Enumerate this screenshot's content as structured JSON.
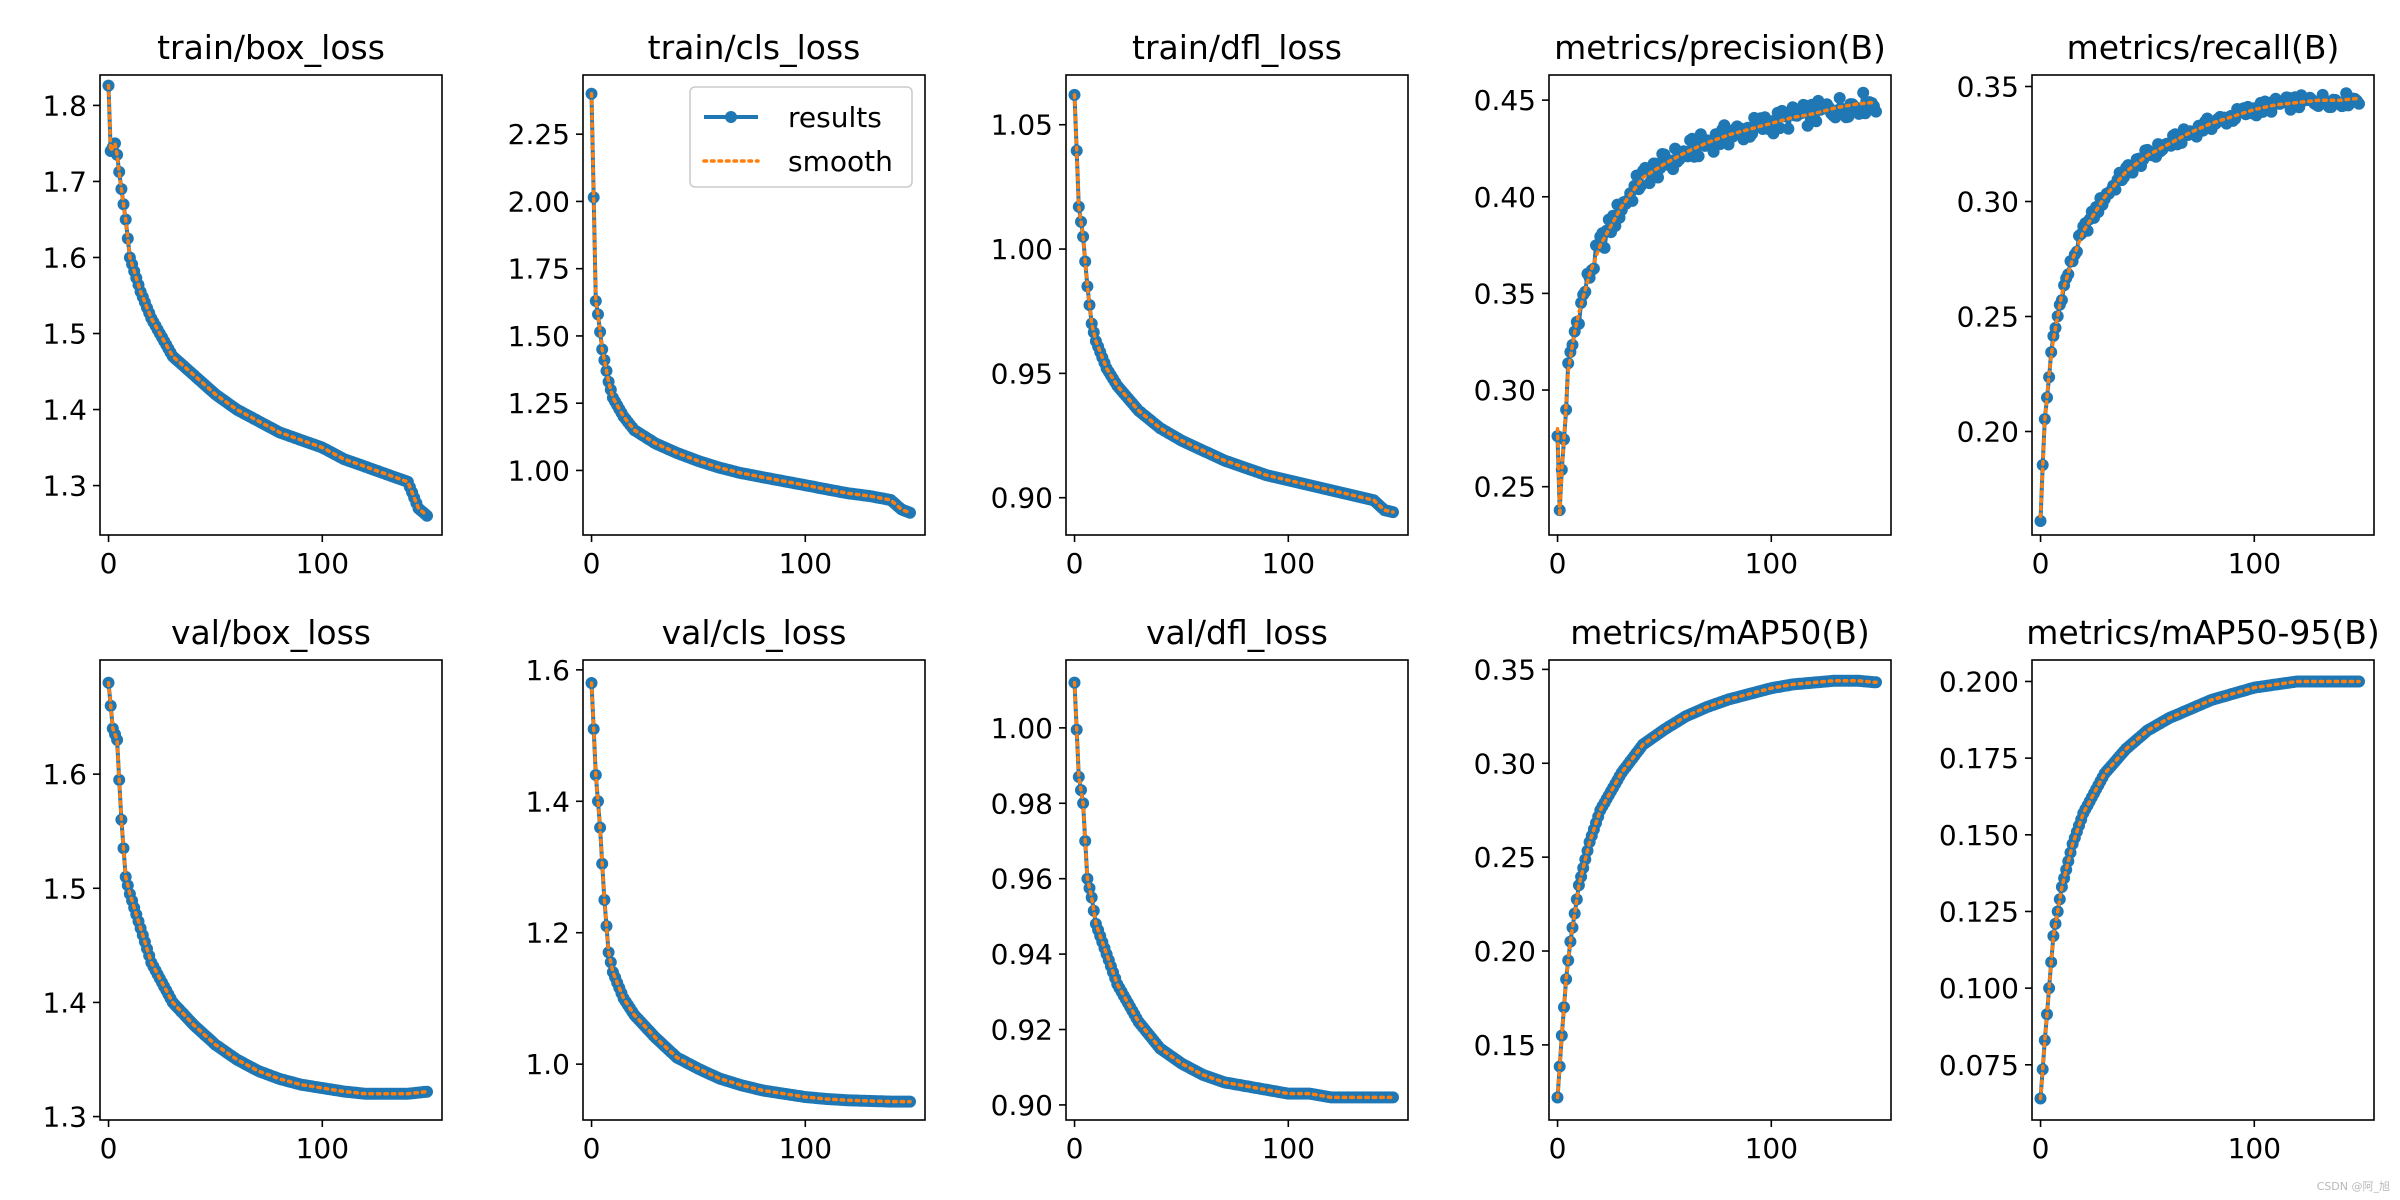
{
  "watermark": "CSDN @阿_旭",
  "colors": {
    "results": "#1f77b4",
    "smooth": "#ff7f0e",
    "axes": "#000000",
    "background": "#ffffff"
  },
  "legend": {
    "location": "upper right",
    "panel": 1,
    "entries": [
      "results",
      "smooth"
    ]
  },
  "chart_data": [
    {
      "type": "line",
      "title": "train/box_loss",
      "xlim": [
        -4,
        156
      ],
      "ylim": [
        1.235,
        1.84
      ],
      "xticks": [
        0,
        100
      ],
      "xtick_labels": [
        "0",
        "100"
      ],
      "yticks": [
        1.3,
        1.4,
        1.5,
        1.6,
        1.7,
        1.8
      ],
      "ytick_labels": [
        "1.3",
        "1.4",
        "1.5",
        "1.6",
        "1.7",
        "1.8"
      ],
      "grid": false,
      "epochs": 150,
      "curve": [
        [
          0,
          1.826
        ],
        [
          1,
          1.74
        ],
        [
          3,
          1.75
        ],
        [
          4,
          1.735
        ],
        [
          6,
          1.69
        ],
        [
          8,
          1.65
        ],
        [
          10,
          1.6
        ],
        [
          15,
          1.555
        ],
        [
          20,
          1.52
        ],
        [
          30,
          1.47
        ],
        [
          40,
          1.445
        ],
        [
          50,
          1.42
        ],
        [
          60,
          1.4
        ],
        [
          70,
          1.385
        ],
        [
          80,
          1.37
        ],
        [
          90,
          1.36
        ],
        [
          100,
          1.35
        ],
        [
          110,
          1.335
        ],
        [
          120,
          1.325
        ],
        [
          130,
          1.315
        ],
        [
          135,
          1.31
        ],
        [
          140,
          1.305
        ],
        [
          145,
          1.27
        ],
        [
          150,
          1.258
        ]
      ],
      "series": [
        {
          "name": "results",
          "style": "line-with-markers",
          "color": "#1f77b4"
        },
        {
          "name": "smooth",
          "style": "dotted",
          "color": "#ff7f0e"
        }
      ]
    },
    {
      "type": "line",
      "title": "train/cls_loss",
      "xlim": [
        -4,
        156
      ],
      "ylim": [
        0.76,
        2.47
      ],
      "xticks": [
        0,
        100
      ],
      "xtick_labels": [
        "0",
        "100"
      ],
      "yticks": [
        1.0,
        1.25,
        1.5,
        1.75,
        2.0,
        2.25
      ],
      "ytick_labels": [
        "1.00",
        "1.25",
        "1.50",
        "1.75",
        "2.00",
        "2.25"
      ],
      "grid": false,
      "epochs": 150,
      "curve": [
        [
          0,
          2.4
        ],
        [
          2,
          1.63
        ],
        [
          3,
          1.58
        ],
        [
          5,
          1.45
        ],
        [
          8,
          1.33
        ],
        [
          10,
          1.27
        ],
        [
          15,
          1.2
        ],
        [
          20,
          1.15
        ],
        [
          30,
          1.1
        ],
        [
          40,
          1.065
        ],
        [
          50,
          1.035
        ],
        [
          60,
          1.01
        ],
        [
          70,
          0.99
        ],
        [
          80,
          0.975
        ],
        [
          90,
          0.96
        ],
        [
          100,
          0.945
        ],
        [
          110,
          0.93
        ],
        [
          120,
          0.915
        ],
        [
          130,
          0.905
        ],
        [
          140,
          0.89
        ],
        [
          145,
          0.855
        ],
        [
          150,
          0.84
        ]
      ],
      "series": [
        {
          "name": "results",
          "style": "line-with-markers",
          "color": "#1f77b4"
        },
        {
          "name": "smooth",
          "style": "dotted",
          "color": "#ff7f0e"
        }
      ]
    },
    {
      "type": "line",
      "title": "train/dfl_loss",
      "xlim": [
        -4,
        156
      ],
      "ylim": [
        0.885,
        1.07
      ],
      "xticks": [
        0,
        100
      ],
      "xtick_labels": [
        "0",
        "100"
      ],
      "yticks": [
        0.9,
        0.95,
        1.0,
        1.05
      ],
      "ytick_labels": [
        "0.90",
        "0.95",
        "1.00",
        "1.05"
      ],
      "grid": false,
      "epochs": 150,
      "curve": [
        [
          0,
          1.062
        ],
        [
          2,
          1.017
        ],
        [
          4,
          1.005
        ],
        [
          6,
          0.985
        ],
        [
          8,
          0.97
        ],
        [
          10,
          0.963
        ],
        [
          15,
          0.952
        ],
        [
          20,
          0.945
        ],
        [
          30,
          0.935
        ],
        [
          40,
          0.928
        ],
        [
          50,
          0.923
        ],
        [
          60,
          0.919
        ],
        [
          70,
          0.915
        ],
        [
          80,
          0.912
        ],
        [
          90,
          0.909
        ],
        [
          100,
          0.907
        ],
        [
          110,
          0.905
        ],
        [
          120,
          0.903
        ],
        [
          130,
          0.901
        ],
        [
          140,
          0.899
        ],
        [
          145,
          0.895
        ],
        [
          150,
          0.894
        ]
      ],
      "series": [
        {
          "name": "results",
          "style": "line-with-markers",
          "color": "#1f77b4"
        },
        {
          "name": "smooth",
          "style": "dotted",
          "color": "#ff7f0e"
        }
      ]
    },
    {
      "type": "line",
      "title": "metrics/precision(B)",
      "xlim": [
        -4,
        156
      ],
      "ylim": [
        0.225,
        0.463
      ],
      "xticks": [
        0,
        100
      ],
      "xtick_labels": [
        "0",
        "100"
      ],
      "yticks": [
        0.25,
        0.3,
        0.35,
        0.4,
        0.45
      ],
      "ytick_labels": [
        "0.25",
        "0.30",
        "0.35",
        "0.40",
        "0.45"
      ],
      "grid": false,
      "epochs": 150,
      "noise": 0.006,
      "curve": [
        [
          0,
          0.28
        ],
        [
          1,
          0.235
        ],
        [
          2,
          0.258
        ],
        [
          3,
          0.275
        ],
        [
          5,
          0.31
        ],
        [
          8,
          0.33
        ],
        [
          10,
          0.34
        ],
        [
          15,
          0.36
        ],
        [
          20,
          0.375
        ],
        [
          30,
          0.395
        ],
        [
          40,
          0.41
        ],
        [
          50,
          0.417
        ],
        [
          60,
          0.423
        ],
        [
          70,
          0.428
        ],
        [
          80,
          0.432
        ],
        [
          90,
          0.435
        ],
        [
          100,
          0.438
        ],
        [
          110,
          0.441
        ],
        [
          120,
          0.443
        ],
        [
          130,
          0.446
        ],
        [
          140,
          0.448
        ],
        [
          150,
          0.449
        ]
      ],
      "series": [
        {
          "name": "results",
          "style": "line-with-markers",
          "color": "#1f77b4"
        },
        {
          "name": "smooth",
          "style": "dotted",
          "color": "#ff7f0e"
        }
      ]
    },
    {
      "type": "line",
      "title": "metrics/recall(B)",
      "xlim": [
        -4,
        156
      ],
      "ylim": [
        0.155,
        0.355
      ],
      "xticks": [
        0,
        100
      ],
      "xtick_labels": [
        "0",
        "100"
      ],
      "yticks": [
        0.2,
        0.25,
        0.3,
        0.35
      ],
      "ytick_labels": [
        "0.20",
        "0.25",
        "0.30",
        "0.35"
      ],
      "grid": false,
      "epochs": 150,
      "noise": 0.003,
      "curve": [
        [
          0,
          0.163
        ],
        [
          2,
          0.205
        ],
        [
          4,
          0.225
        ],
        [
          6,
          0.24
        ],
        [
          10,
          0.26
        ],
        [
          15,
          0.275
        ],
        [
          20,
          0.287
        ],
        [
          30,
          0.302
        ],
        [
          40,
          0.313
        ],
        [
          50,
          0.32
        ],
        [
          60,
          0.325
        ],
        [
          70,
          0.33
        ],
        [
          80,
          0.334
        ],
        [
          90,
          0.337
        ],
        [
          100,
          0.34
        ],
        [
          110,
          0.342
        ],
        [
          120,
          0.343
        ],
        [
          130,
          0.344
        ],
        [
          140,
          0.344
        ],
        [
          150,
          0.345
        ]
      ],
      "series": [
        {
          "name": "results",
          "style": "line-with-markers",
          "color": "#1f77b4"
        },
        {
          "name": "smooth",
          "style": "dotted",
          "color": "#ff7f0e"
        }
      ]
    },
    {
      "type": "line",
      "title": "val/box_loss",
      "xlim": [
        -4,
        156
      ],
      "ylim": [
        1.297,
        1.7
      ],
      "xticks": [
        0,
        100
      ],
      "xtick_labels": [
        "0",
        "100"
      ],
      "yticks": [
        1.3,
        1.4,
        1.5,
        1.6
      ],
      "ytick_labels": [
        "1.3",
        "1.4",
        "1.5",
        "1.6"
      ],
      "grid": false,
      "epochs": 150,
      "curve": [
        [
          0,
          1.68
        ],
        [
          2,
          1.64
        ],
        [
          4,
          1.63
        ],
        [
          6,
          1.56
        ],
        [
          8,
          1.51
        ],
        [
          10,
          1.495
        ],
        [
          15,
          1.465
        ],
        [
          20,
          1.435
        ],
        [
          30,
          1.4
        ],
        [
          40,
          1.38
        ],
        [
          50,
          1.363
        ],
        [
          60,
          1.35
        ],
        [
          70,
          1.34
        ],
        [
          80,
          1.333
        ],
        [
          90,
          1.328
        ],
        [
          100,
          1.325
        ],
        [
          110,
          1.322
        ],
        [
          120,
          1.32
        ],
        [
          130,
          1.32
        ],
        [
          140,
          1.32
        ],
        [
          150,
          1.322
        ]
      ],
      "series": [
        {
          "name": "results",
          "style": "line-with-markers",
          "color": "#1f77b4"
        },
        {
          "name": "smooth",
          "style": "dotted",
          "color": "#ff7f0e"
        }
      ]
    },
    {
      "type": "line",
      "title": "val/cls_loss",
      "xlim": [
        -4,
        156
      ],
      "ylim": [
        0.915,
        1.615
      ],
      "xticks": [
        0,
        100
      ],
      "xtick_labels": [
        "0",
        "100"
      ],
      "yticks": [
        1.0,
        1.2,
        1.4,
        1.6
      ],
      "ytick_labels": [
        "1.0",
        "1.2",
        "1.4",
        "1.6"
      ],
      "grid": false,
      "epochs": 150,
      "curve": [
        [
          0,
          1.58
        ],
        [
          2,
          1.44
        ],
        [
          4,
          1.36
        ],
        [
          6,
          1.25
        ],
        [
          8,
          1.17
        ],
        [
          10,
          1.14
        ],
        [
          15,
          1.1
        ],
        [
          20,
          1.075
        ],
        [
          30,
          1.04
        ],
        [
          40,
          1.01
        ],
        [
          50,
          0.993
        ],
        [
          60,
          0.978
        ],
        [
          70,
          0.968
        ],
        [
          80,
          0.96
        ],
        [
          90,
          0.955
        ],
        [
          100,
          0.95
        ],
        [
          110,
          0.947
        ],
        [
          120,
          0.945
        ],
        [
          130,
          0.944
        ],
        [
          140,
          0.943
        ],
        [
          150,
          0.943
        ]
      ],
      "series": [
        {
          "name": "results",
          "style": "line-with-markers",
          "color": "#1f77b4"
        },
        {
          "name": "smooth",
          "style": "dotted",
          "color": "#ff7f0e"
        }
      ]
    },
    {
      "type": "line",
      "title": "val/dfl_loss",
      "xlim": [
        -4,
        156
      ],
      "ylim": [
        0.896,
        1.018
      ],
      "xticks": [
        0,
        100
      ],
      "xtick_labels": [
        "0",
        "100"
      ],
      "yticks": [
        0.9,
        0.92,
        0.94,
        0.96,
        0.98,
        1.0
      ],
      "ytick_labels": [
        "0.90",
        "0.92",
        "0.94",
        "0.96",
        "0.98",
        "1.00"
      ],
      "grid": false,
      "epochs": 150,
      "curve": [
        [
          0,
          1.012
        ],
        [
          2,
          0.987
        ],
        [
          4,
          0.98
        ],
        [
          6,
          0.96
        ],
        [
          8,
          0.955
        ],
        [
          10,
          0.948
        ],
        [
          15,
          0.94
        ],
        [
          20,
          0.932
        ],
        [
          30,
          0.922
        ],
        [
          40,
          0.915
        ],
        [
          50,
          0.911
        ],
        [
          60,
          0.908
        ],
        [
          70,
          0.906
        ],
        [
          80,
          0.905
        ],
        [
          90,
          0.904
        ],
        [
          100,
          0.903
        ],
        [
          110,
          0.903
        ],
        [
          120,
          0.902
        ],
        [
          130,
          0.902
        ],
        [
          140,
          0.902
        ],
        [
          150,
          0.902
        ]
      ],
      "series": [
        {
          "name": "results",
          "style": "line-with-markers",
          "color": "#1f77b4"
        },
        {
          "name": "smooth",
          "style": "dotted",
          "color": "#ff7f0e"
        }
      ]
    },
    {
      "type": "line",
      "title": "metrics/mAP50(B)",
      "xlim": [
        -4,
        156
      ],
      "ylim": [
        0.11,
        0.355
      ],
      "xticks": [
        0,
        100
      ],
      "xtick_labels": [
        "0",
        "100"
      ],
      "yticks": [
        0.15,
        0.2,
        0.25,
        0.3,
        0.35
      ],
      "ytick_labels": [
        "0.15",
        "0.20",
        "0.25",
        "0.30",
        "0.35"
      ],
      "grid": false,
      "epochs": 150,
      "curve": [
        [
          0,
          0.122
        ],
        [
          2,
          0.155
        ],
        [
          4,
          0.185
        ],
        [
          6,
          0.205
        ],
        [
          10,
          0.235
        ],
        [
          15,
          0.258
        ],
        [
          20,
          0.275
        ],
        [
          30,
          0.295
        ],
        [
          40,
          0.31
        ],
        [
          50,
          0.318
        ],
        [
          60,
          0.325
        ],
        [
          70,
          0.33
        ],
        [
          80,
          0.334
        ],
        [
          90,
          0.337
        ],
        [
          100,
          0.34
        ],
        [
          110,
          0.342
        ],
        [
          120,
          0.343
        ],
        [
          130,
          0.344
        ],
        [
          140,
          0.344
        ],
        [
          150,
          0.343
        ]
      ],
      "series": [
        {
          "name": "results",
          "style": "line-with-markers",
          "color": "#1f77b4"
        },
        {
          "name": "smooth",
          "style": "dotted",
          "color": "#ff7f0e"
        }
      ]
    },
    {
      "type": "line",
      "title": "metrics/mAP50-95(B)",
      "xlim": [
        -4,
        156
      ],
      "ylim": [
        0.057,
        0.207
      ],
      "xticks": [
        0,
        100
      ],
      "xtick_labels": [
        "0",
        "100"
      ],
      "yticks": [
        0.075,
        0.1,
        0.125,
        0.15,
        0.175,
        0.2
      ],
      "ytick_labels": [
        "0.075",
        "0.100",
        "0.125",
        "0.150",
        "0.175",
        "0.200"
      ],
      "grid": false,
      "epochs": 150,
      "curve": [
        [
          0,
          0.064
        ],
        [
          2,
          0.083
        ],
        [
          4,
          0.1
        ],
        [
          6,
          0.117
        ],
        [
          10,
          0.133
        ],
        [
          15,
          0.147
        ],
        [
          20,
          0.157
        ],
        [
          30,
          0.17
        ],
        [
          40,
          0.178
        ],
        [
          50,
          0.184
        ],
        [
          60,
          0.188
        ],
        [
          70,
          0.191
        ],
        [
          80,
          0.194
        ],
        [
          90,
          0.196
        ],
        [
          100,
          0.198
        ],
        [
          110,
          0.199
        ],
        [
          120,
          0.2
        ],
        [
          130,
          0.2
        ],
        [
          140,
          0.2
        ],
        [
          150,
          0.2
        ]
      ],
      "series": [
        {
          "name": "results",
          "style": "line-with-markers",
          "color": "#1f77b4"
        },
        {
          "name": "smooth",
          "style": "dotted",
          "color": "#ff7f0e"
        }
      ]
    }
  ]
}
